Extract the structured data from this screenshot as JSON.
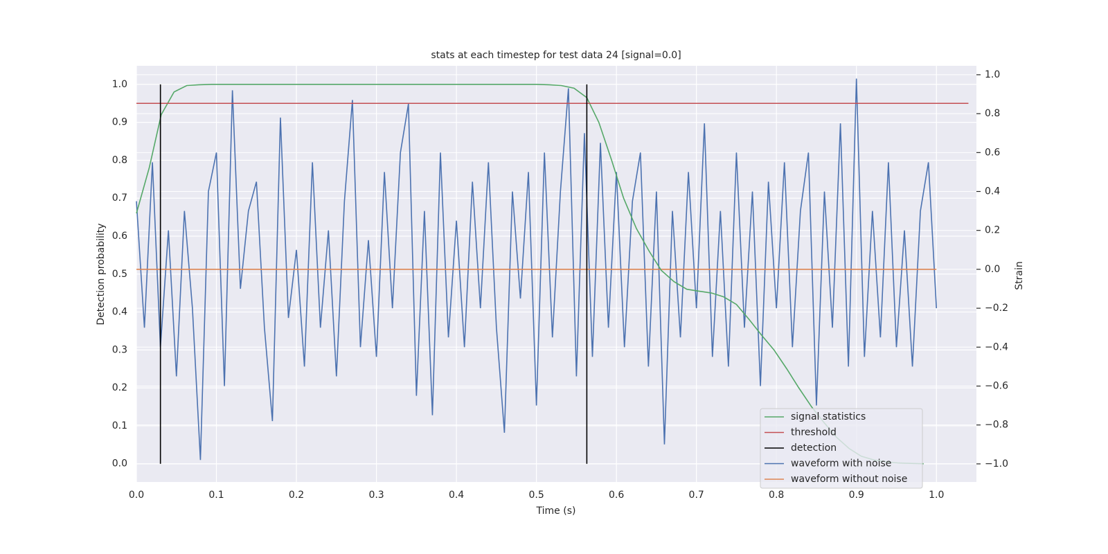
{
  "chart_data": {
    "type": "line",
    "title": "stats at each timestep for test data 24 [signal=0.0]",
    "xlabel": "Time (s)",
    "ylabel": "Detection probability",
    "y2label": "Strain",
    "xlim": [
      0,
      1.05
    ],
    "ylim": [
      -0.048,
      1.049
    ],
    "y2lim": [
      -1.093,
      1.046
    ],
    "xticks": [
      {
        "value": 0,
        "label": "0.0"
      },
      0.1,
      0.2,
      0.3,
      0.4,
      0.5,
      0.6,
      0.7,
      0.8,
      0.9,
      {
        "value": 1,
        "label": "1.0"
      }
    ],
    "yticks": [
      {
        "value": 0,
        "label": "0.0"
      },
      0.1,
      0.2,
      0.3,
      0.4,
      0.5,
      0.6,
      0.7,
      0.8,
      0.9,
      {
        "value": 1,
        "label": "1.0"
      }
    ],
    "y2ticks": [
      {
        "value": -1,
        "label": "−1.0"
      },
      {
        "value": -0.8,
        "label": "−0.8"
      },
      {
        "value": -0.6,
        "label": "−0.6"
      },
      {
        "value": -0.4,
        "label": "−0.4"
      },
      {
        "value": -0.2,
        "label": "−0.2"
      },
      {
        "value": 0,
        "label": "0.0"
      },
      0.2,
      0.4,
      0.6,
      0.8,
      {
        "value": 1,
        "label": "1.0"
      }
    ],
    "grid": true,
    "legend": "lower right",
    "series": [
      {
        "name": "signal statistics",
        "color": "#55a868",
        "x": [
          0,
          0.016,
          0.031,
          0.047,
          0.063,
          0.078,
          0.094,
          0.5,
          0.516,
          0.531,
          0.547,
          0.563,
          0.578,
          0.594,
          0.609,
          0.625,
          0.641,
          0.656,
          0.672,
          0.688,
          0.703,
          0.719,
          0.734,
          0.75,
          0.766,
          0.781,
          0.797,
          0.813,
          0.828,
          0.844,
          0.859,
          0.875,
          0.891,
          0.906,
          0.922,
          0.938,
          0.953,
          0.969,
          0.984
        ],
        "values": [
          0.66,
          0.78,
          0.92,
          0.98,
          0.997,
          0.999,
          1.0,
          1.0,
          0.999,
          0.997,
          0.99,
          0.965,
          0.9,
          0.8,
          0.7,
          0.62,
          0.56,
          0.51,
          0.48,
          0.46,
          0.455,
          0.45,
          0.44,
          0.42,
          0.38,
          0.34,
          0.3,
          0.25,
          0.2,
          0.15,
          0.11,
          0.07,
          0.04,
          0.02,
          0.01,
          0.005,
          0.002,
          0.001,
          0.0
        ]
      },
      {
        "name": "threshold",
        "color": "#c44e52",
        "x": [
          0,
          1.04
        ],
        "values": [
          0.95,
          0.95
        ]
      },
      {
        "name": "detection",
        "color": "#000000",
        "x": [
          0.03,
          0.03,
          0.03,
          0.563,
          0.563
        ],
        "values": [
          0,
          1,
          null,
          0,
          1
        ]
      },
      {
        "name": "waveform with noise",
        "color": "#4c72b0",
        "axis": "y2",
        "x": [
          0,
          0.01,
          0.02,
          0.03,
          0.04,
          0.05,
          0.06,
          0.07,
          0.08,
          0.09,
          0.1,
          0.11,
          0.12,
          0.13,
          0.14,
          0.15,
          0.16,
          0.17,
          0.18,
          0.19,
          0.2,
          0.21,
          0.22,
          0.23,
          0.24,
          0.25,
          0.26,
          0.27,
          0.28,
          0.29,
          0.3,
          0.31,
          0.32,
          0.33,
          0.34,
          0.35,
          0.36,
          0.37,
          0.38,
          0.39,
          0.4,
          0.41,
          0.42,
          0.43,
          0.44,
          0.45,
          0.46,
          0.47,
          0.48,
          0.49,
          0.5,
          0.51,
          0.52,
          0.53,
          0.54,
          0.55,
          0.56,
          0.57,
          0.58,
          0.59,
          0.6,
          0.61,
          0.62,
          0.63,
          0.64,
          0.65,
          0.66,
          0.67,
          0.68,
          0.69,
          0.7,
          0.71,
          0.72,
          0.73,
          0.74,
          0.75,
          0.76,
          0.77,
          0.78,
          0.79,
          0.8,
          0.81,
          0.82,
          0.83,
          0.84,
          0.85,
          0.86,
          0.87,
          0.88,
          0.89,
          0.9,
          0.91,
          0.92,
          0.93,
          0.94,
          0.95,
          0.96,
          0.97,
          0.98,
          0.99,
          1.0
        ],
        "values": [
          0.35,
          -0.3,
          0.55,
          -0.4,
          0.2,
          -0.55,
          0.3,
          -0.2,
          -0.98,
          0.4,
          0.6,
          -0.6,
          0.92,
          -0.1,
          0.3,
          0.45,
          -0.3,
          -0.78,
          0.78,
          -0.25,
          0.1,
          -0.5,
          0.55,
          -0.3,
          0.2,
          -0.55,
          0.35,
          0.87,
          -0.4,
          0.15,
          -0.45,
          0.5,
          -0.2,
          0.6,
          0.85,
          -0.65,
          0.3,
          -0.75,
          0.6,
          -0.35,
          0.25,
          -0.4,
          0.45,
          -0.2,
          0.55,
          -0.3,
          -0.84,
          0.4,
          -0.15,
          0.5,
          -0.7,
          0.6,
          -0.35,
          0.4,
          0.93,
          -0.55,
          0.7,
          -0.45,
          0.65,
          -0.3,
          0.5,
          -0.4,
          0.35,
          0.6,
          -0.5,
          0.4,
          -0.9,
          0.3,
          -0.35,
          0.5,
          -0.2,
          0.75,
          -0.45,
          0.3,
          -0.5,
          0.6,
          -0.3,
          0.4,
          -0.6,
          0.45,
          -0.2,
          0.55,
          -0.4,
          0.3,
          0.6,
          -0.7,
          0.4,
          -0.3,
          0.75,
          -0.5,
          0.98,
          -0.45,
          0.3,
          -0.35,
          0.55,
          -0.4,
          0.2,
          -0.5,
          0.3,
          0.55,
          -0.2
        ]
      },
      {
        "name": "waveform without noise",
        "color": "#dd8452",
        "axis": "y2",
        "x": [
          0,
          1.0
        ],
        "values": [
          0,
          0
        ]
      }
    ]
  }
}
